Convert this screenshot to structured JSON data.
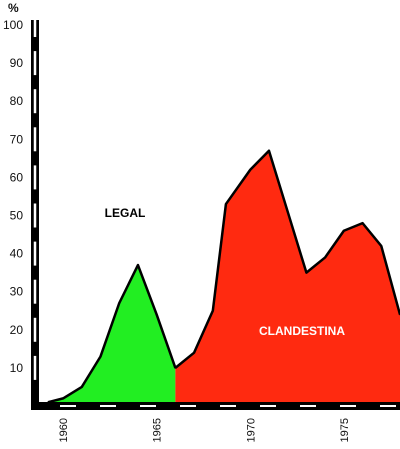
{
  "chart_data": {
    "type": "area",
    "title": "",
    "xlabel": "",
    "ylabel": "%",
    "xlim": [
      1958.5,
      1978
    ],
    "ylim": [
      0,
      100
    ],
    "x_ticks": [
      "1960",
      "1965",
      "1970",
      "1975"
    ],
    "y_ticks": [
      "10",
      "20",
      "30",
      "40",
      "50",
      "60",
      "70",
      "80",
      "90",
      "100"
    ],
    "grid": false,
    "legend": "none",
    "series": [
      {
        "name": "LEGAL",
        "color": "#22ee22",
        "points": [
          {
            "x": 1959.2,
            "y": 1
          },
          {
            "x": 1960.0,
            "y": 2
          },
          {
            "x": 1961.0,
            "y": 5
          },
          {
            "x": 1962.0,
            "y": 13
          },
          {
            "x": 1963.0,
            "y": 27
          },
          {
            "x": 1964.0,
            "y": 37
          },
          {
            "x": 1965.0,
            "y": 24
          },
          {
            "x": 1966.0,
            "y": 10
          }
        ]
      },
      {
        "name": "CLANDESTINA",
        "color": "#ff2a10",
        "points": [
          {
            "x": 1966.0,
            "y": 10
          },
          {
            "x": 1967.0,
            "y": 14
          },
          {
            "x": 1968.0,
            "y": 25
          },
          {
            "x": 1968.7,
            "y": 53
          },
          {
            "x": 1970.0,
            "y": 62
          },
          {
            "x": 1971.0,
            "y": 67
          },
          {
            "x": 1972.0,
            "y": 51
          },
          {
            "x": 1973.0,
            "y": 35
          },
          {
            "x": 1974.0,
            "y": 39
          },
          {
            "x": 1975.0,
            "y": 46
          },
          {
            "x": 1976.0,
            "y": 48
          },
          {
            "x": 1977.0,
            "y": 42
          },
          {
            "x": 1978.0,
            "y": 24
          }
        ]
      }
    ]
  }
}
